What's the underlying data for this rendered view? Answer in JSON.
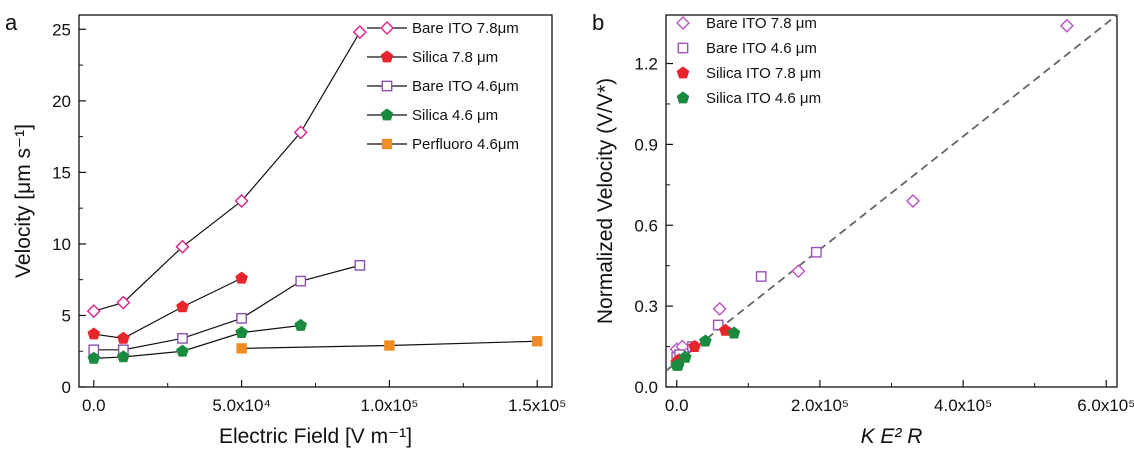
{
  "chart_data": [
    {
      "panel": "a",
      "type": "line",
      "xlabel": "Electric Field [V m⁻¹]",
      "ylabel": "Velocity [μm s⁻¹]",
      "xlim": [
        -5000,
        155000
      ],
      "ylim": [
        0,
        26
      ],
      "x_ticks": [
        0,
        50000,
        100000,
        150000
      ],
      "x_tick_labels": [
        "0.0",
        "5.0x10⁴",
        "1.0x10⁵",
        "1.5x10⁵"
      ],
      "y_ticks": [
        0,
        5,
        10,
        15,
        20,
        25
      ],
      "y_tick_labels": [
        "0",
        "5",
        "10",
        "15",
        "20",
        "25"
      ],
      "legend_position": "top-right",
      "series": [
        {
          "name": "Bare ITO 7.8μm",
          "marker": "diamond-open",
          "color": "#e0218a",
          "x": [
            0,
            10000,
            30000,
            50000,
            70000,
            90000
          ],
          "y": [
            5.3,
            5.9,
            9.8,
            13.0,
            17.8,
            24.8
          ]
        },
        {
          "name": "Silica 7.8 μm",
          "marker": "pentagon",
          "color": "#e8252b",
          "x": [
            0,
            10000,
            30000,
            50000
          ],
          "y": [
            3.7,
            3.4,
            5.6,
            7.6
          ]
        },
        {
          "name": "Bare ITO 4.6μm",
          "marker": "square-open",
          "color": "#8a52b0",
          "x": [
            0,
            10000,
            30000,
            50000,
            70000,
            90000
          ],
          "y": [
            2.6,
            2.6,
            3.4,
            4.8,
            7.4,
            8.5
          ]
        },
        {
          "name": "Silica 4.6 μm",
          "marker": "pentagon",
          "color": "#1a8a3e",
          "x": [
            0,
            10000,
            30000,
            50000,
            70000
          ],
          "y": [
            2.0,
            2.1,
            2.5,
            3.8,
            4.3
          ]
        },
        {
          "name": "Perfluoro 4.6μm",
          "marker": "square",
          "color": "#f08c23",
          "x": [
            50000,
            100000,
            150000
          ],
          "y": [
            2.7,
            2.9,
            3.2
          ]
        }
      ]
    },
    {
      "panel": "b",
      "type": "scatter",
      "xlabel": "K E² R",
      "ylabel": "Normalized Velocity (V/V*)",
      "xlim": [
        -15000,
        615000
      ],
      "ylim": [
        0,
        1.38
      ],
      "x_ticks": [
        0,
        200000,
        400000,
        600000
      ],
      "x_tick_labels": [
        "0.0",
        "2.0x10⁵",
        "4.0x10⁵",
        "6.0x10⁵"
      ],
      "y_ticks": [
        0,
        0.3,
        0.6,
        0.9,
        1.2
      ],
      "y_tick_labels": [
        "0.0",
        "0.3",
        "0.6",
        "0.9",
        "1.2"
      ],
      "legend_position": "top-left",
      "fit_line": {
        "style": "dashed",
        "color": "#666666",
        "x": [
          -15000,
          615000
        ],
        "y": [
          0.06,
          1.38
        ]
      },
      "series": [
        {
          "name": "Bare ITO 7.8 μm",
          "marker": "diamond-open",
          "color": "#c050c8",
          "x": [
            0,
            8000,
            60000,
            170000,
            330000,
            545000
          ],
          "y": [
            0.14,
            0.15,
            0.29,
            0.43,
            0.69,
            1.34
          ]
        },
        {
          "name": "Bare ITO 4.6 μm",
          "marker": "square-open",
          "color": "#9a52b8",
          "x": [
            0,
            4000,
            22000,
            58000,
            118000,
            195000
          ],
          "y": [
            0.11,
            0.12,
            0.15,
            0.23,
            0.41,
            0.5
          ]
        },
        {
          "name": "Silica ITO 7.8 μm",
          "marker": "pentagon",
          "color": "#e8252b",
          "x": [
            0,
            3000,
            25000,
            68000
          ],
          "y": [
            0.09,
            0.1,
            0.15,
            0.21
          ]
        },
        {
          "name": "Silica ITO 4.6 μm",
          "marker": "pentagon",
          "color": "#1a8a3e",
          "x": [
            0,
            2000,
            12000,
            40000,
            80000
          ],
          "y": [
            0.08,
            0.08,
            0.11,
            0.17,
            0.2
          ]
        }
      ]
    }
  ]
}
